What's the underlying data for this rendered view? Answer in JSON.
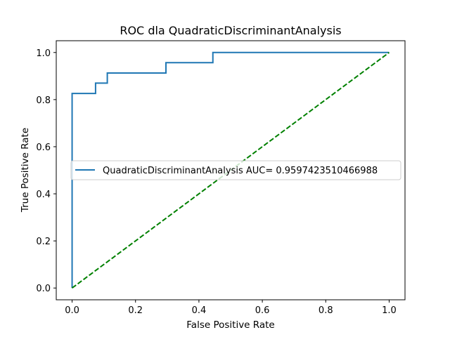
{
  "chart_data": {
    "type": "line",
    "title": "ROC dla QuadraticDiscriminantAnalysis",
    "xlabel": "False Positive Rate",
    "ylabel": "True Positive Rate",
    "xlim": [
      -0.05,
      1.05
    ],
    "ylim": [
      -0.05,
      1.05
    ],
    "xticks": [
      0.0,
      0.2,
      0.4,
      0.6,
      0.8,
      1.0
    ],
    "yticks": [
      0.0,
      0.2,
      0.4,
      0.6,
      0.8,
      1.0
    ],
    "xtick_labels": [
      "0.0",
      "0.2",
      "0.4",
      "0.6",
      "0.8",
      "1.0"
    ],
    "ytick_labels": [
      "0.0",
      "0.2",
      "0.4",
      "0.6",
      "0.8",
      "1.0"
    ],
    "grid": false,
    "legend_position": "center-right",
    "series": [
      {
        "name": "QuadraticDiscriminantAnalysis AUC= 0.9597423510466988",
        "color": "#1f77b4",
        "style": "solid",
        "x": [
          0.0,
          0.0,
          0.0,
          0.074,
          0.074,
          0.111,
          0.111,
          0.296,
          0.296,
          0.444,
          0.444,
          1.0
        ],
        "y": [
          0.0,
          0.826,
          0.826,
          0.826,
          0.87,
          0.87,
          0.913,
          0.913,
          0.957,
          0.957,
          1.0,
          1.0
        ]
      },
      {
        "color": "#008000",
        "style": "dashed",
        "x": [
          0.0,
          1.0
        ],
        "y": [
          0.0,
          1.0
        ]
      }
    ]
  }
}
